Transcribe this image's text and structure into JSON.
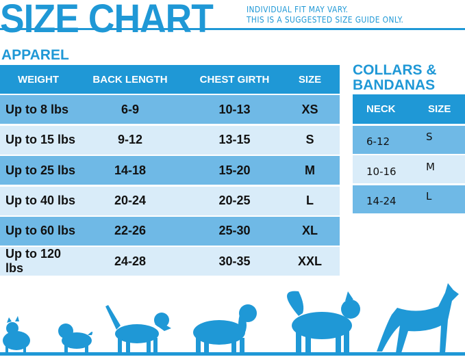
{
  "header": {
    "title": "SIZE CHART",
    "note_line1": "INDIVIDUAL FIT MAY VARY.",
    "note_line2": "THIS IS A SUGGESTED SIZE GUIDE ONLY."
  },
  "apparel": {
    "title": "APPAREL",
    "columns": [
      "WEIGHT",
      "BACK LENGTH",
      "CHEST GIRTH",
      "SIZE"
    ],
    "rows": [
      [
        "Up to 8 lbs",
        "6-9",
        "10-13",
        "XS"
      ],
      [
        "Up to 15 lbs",
        "9-12",
        "13-15",
        "S"
      ],
      [
        "Up to 25 lbs",
        "14-18",
        "15-20",
        "M"
      ],
      [
        "Up to 40 lbs",
        "20-24",
        "20-25",
        "L"
      ],
      [
        "Up to 60 lbs",
        "22-26",
        "25-30",
        "XL"
      ],
      [
        "Up to 120 lbs",
        "24-28",
        "30-35",
        "XXL"
      ]
    ]
  },
  "collars": {
    "title_line1": "COLLARS &",
    "title_line2": "BANDANAS",
    "columns": [
      "NECK",
      "SIZE"
    ],
    "rows": [
      [
        "6-12",
        "S"
      ],
      [
        "10-16",
        "M"
      ],
      [
        "14-24",
        "L"
      ]
    ]
  },
  "colors": {
    "accent": "#1f98d6",
    "row_medium": "#6fb9e6",
    "row_light": "#d9ecf9"
  }
}
